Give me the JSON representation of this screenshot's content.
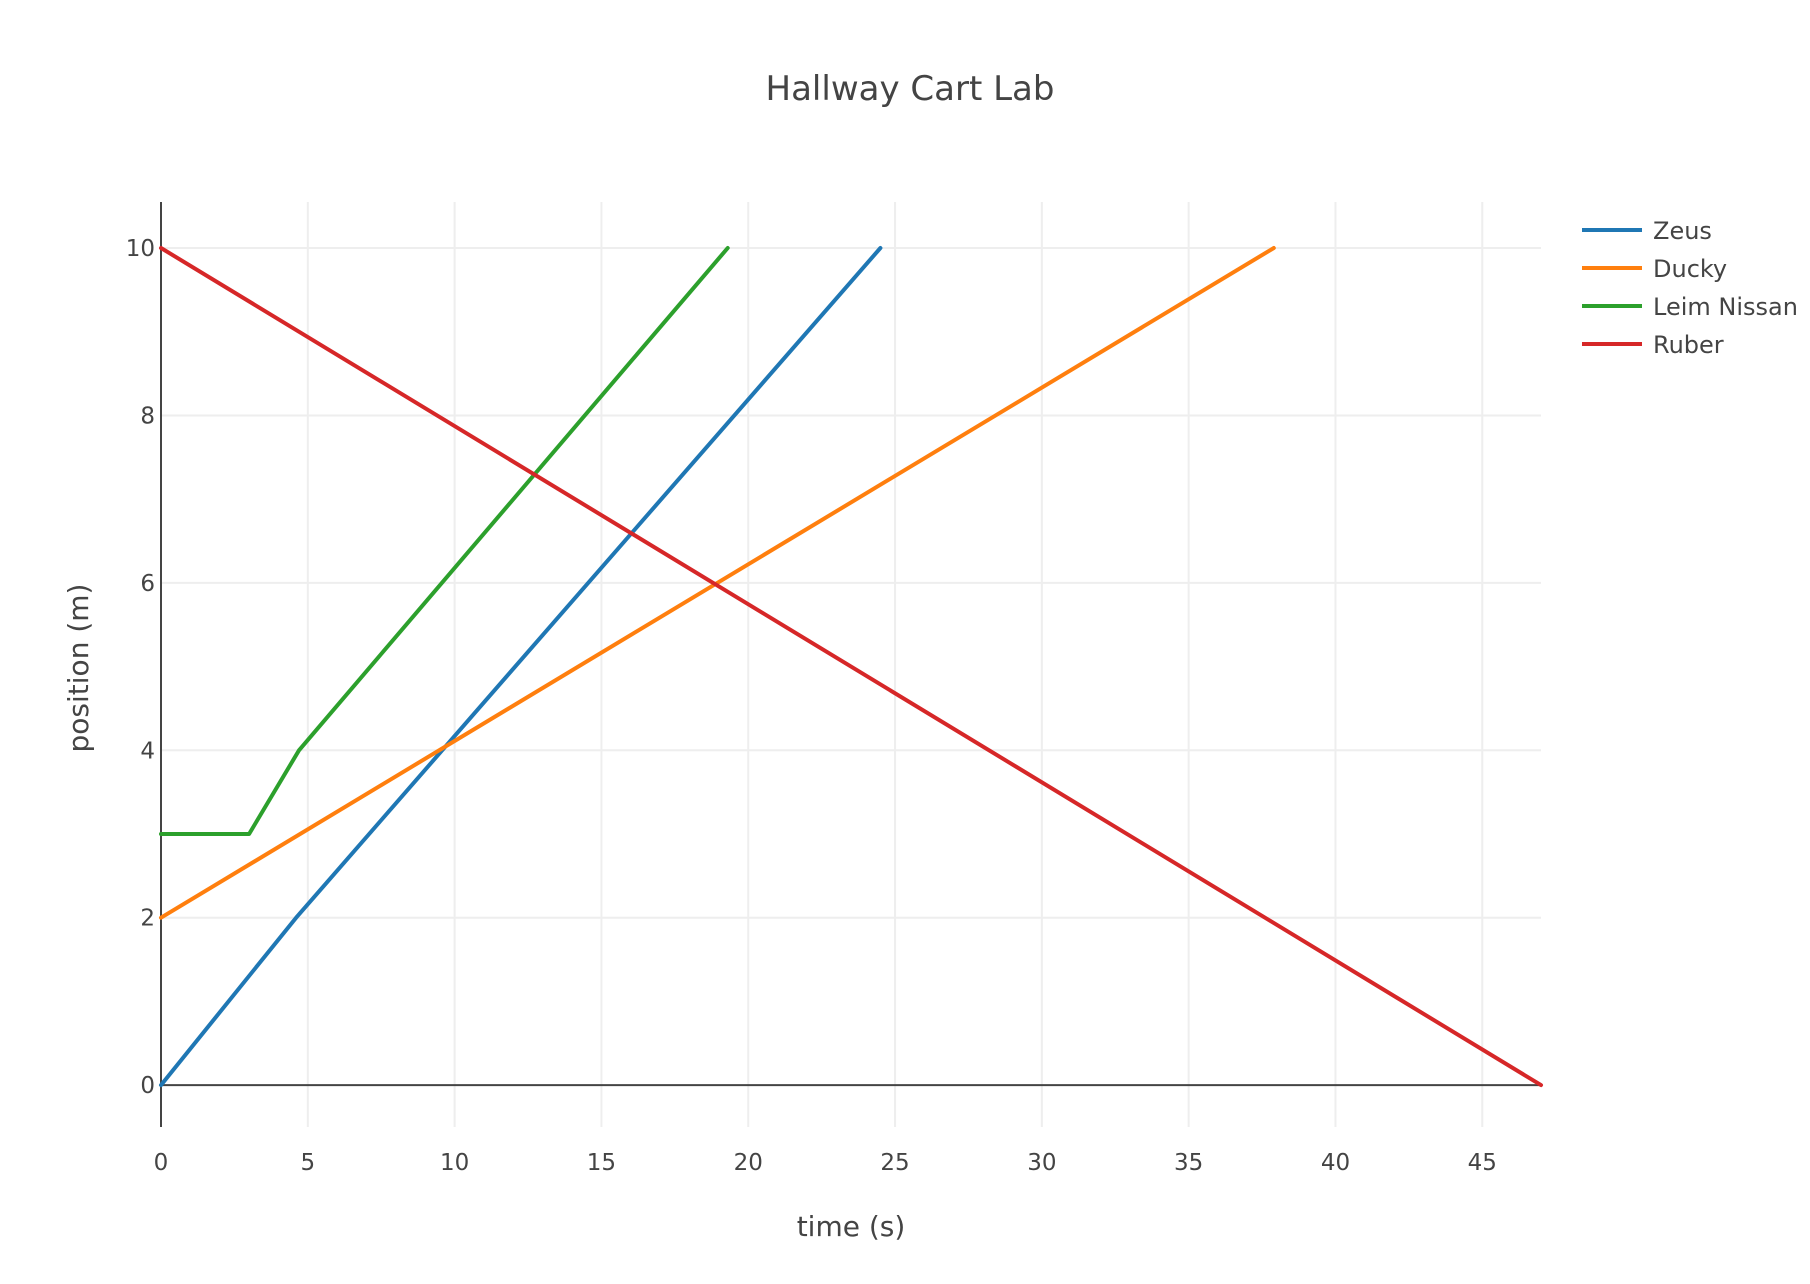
{
  "chart_data": {
    "type": "line",
    "title": "Hallway Cart Lab",
    "xlabel": "time (s)",
    "ylabel": "position (m)",
    "xlim": [
      0,
      47
    ],
    "ylim": [
      -0.5,
      10.55
    ],
    "x_ticks": [
      0,
      5,
      10,
      15,
      20,
      25,
      30,
      35,
      40,
      45
    ],
    "y_ticks": [
      0,
      2,
      4,
      6,
      8,
      10
    ],
    "grid": true,
    "legend_position": "top-right",
    "series": [
      {
        "name": "Zeus",
        "color": "#1f77b4",
        "x": [
          0,
          4.6,
          24.5
        ],
        "y": [
          0,
          2,
          10
        ]
      },
      {
        "name": "Ducky",
        "color": "#ff7f0e",
        "x": [
          0,
          37.9
        ],
        "y": [
          2,
          10
        ]
      },
      {
        "name": "Leim Nissan",
        "color": "#2ca02c",
        "x": [
          0,
          3.0,
          4.7,
          19.3
        ],
        "y": [
          3,
          3,
          4,
          10
        ]
      },
      {
        "name": "Ruber",
        "color": "#d62728",
        "x": [
          0,
          47
        ],
        "y": [
          10,
          0
        ]
      }
    ]
  }
}
